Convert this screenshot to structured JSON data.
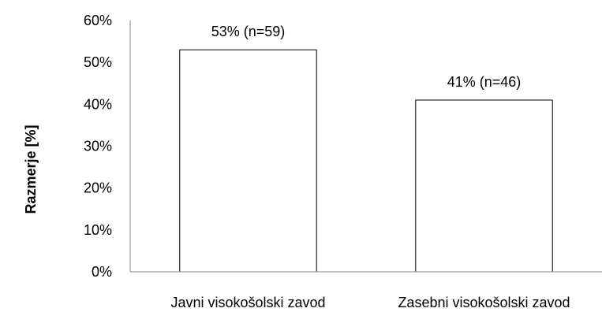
{
  "chart_data": {
    "type": "bar",
    "categories": [
      "Javni visokošolski zavod",
      "Zasebni visokošolski zavod"
    ],
    "values": [
      53,
      41
    ],
    "data_labels": [
      "53% (n=59)",
      "41% (n=46)"
    ],
    "n": [
      59,
      46
    ],
    "title": "",
    "xlabel": "",
    "ylabel": "Razmerje [%]",
    "ylim": [
      0,
      60
    ],
    "yticks": [
      0,
      10,
      20,
      30,
      40,
      50,
      60
    ],
    "ytick_labels": [
      "0%",
      "10%",
      "20%",
      "30%",
      "40%",
      "50%",
      "60%"
    ],
    "grid": false,
    "legend": "none",
    "bar_fill": "#ffffff",
    "bar_stroke": "#000000",
    "axis_color": "#868686"
  }
}
